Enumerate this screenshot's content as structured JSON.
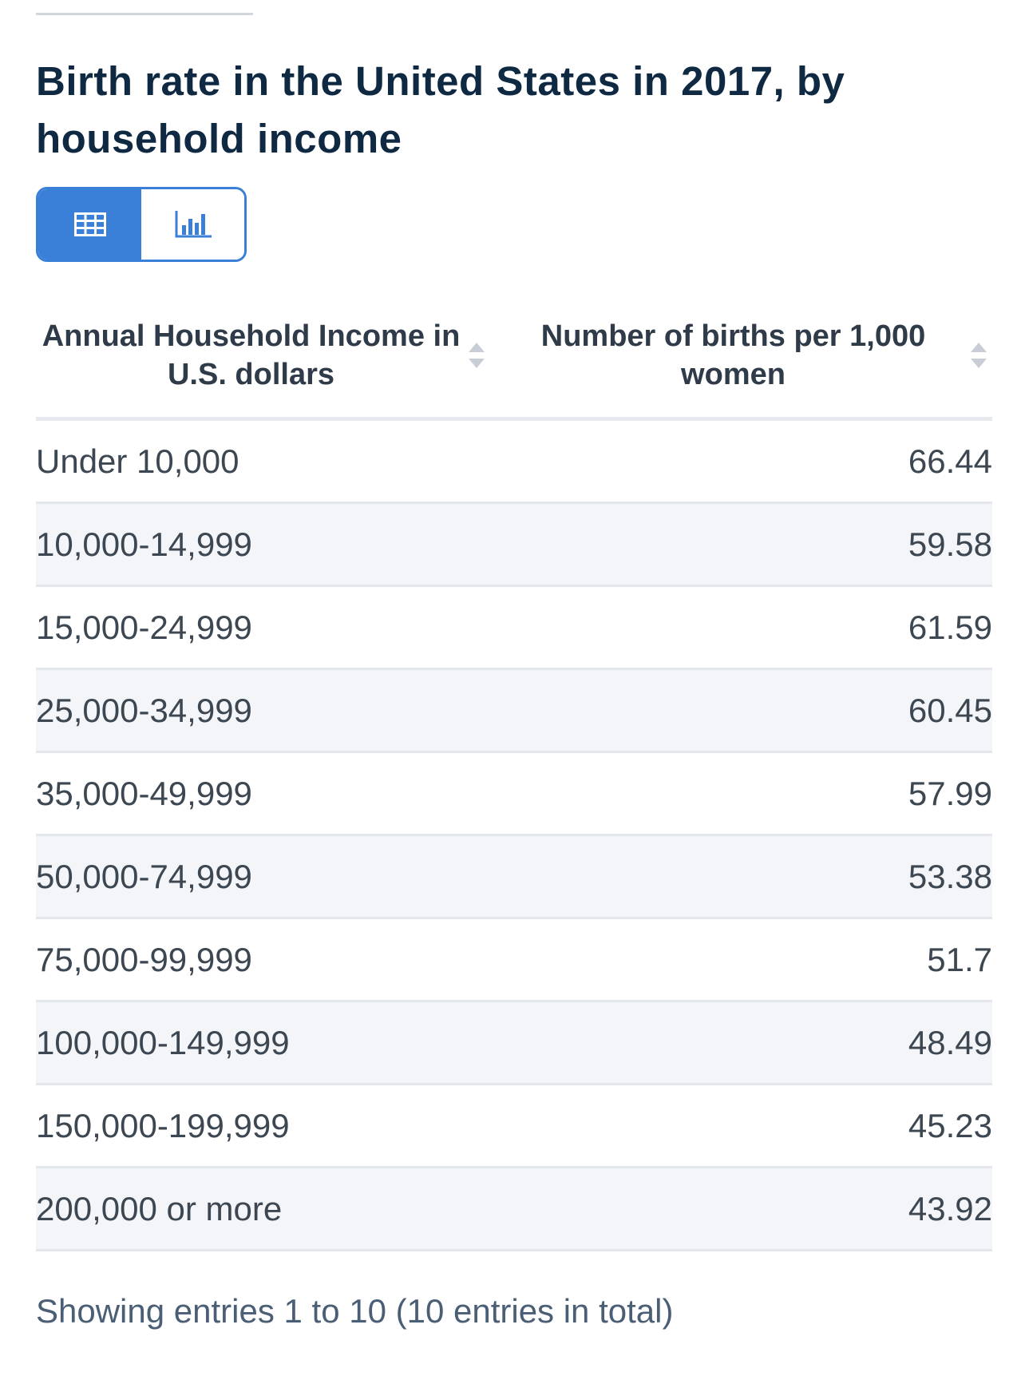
{
  "title": "Birth rate in the United States in 2017, by household income",
  "view_toggle": {
    "options": [
      {
        "icon": "table-icon",
        "active": true
      },
      {
        "icon": "bar-chart-icon",
        "active": false
      }
    ],
    "accent_color": "#3a7fd8"
  },
  "chart_data": {
    "type": "table",
    "title": "Birth rate in the United States in 2017, by household income",
    "columns": [
      "Annual Household Income in U.S. dollars",
      "Number of births per 1,000 women"
    ],
    "rows": [
      {
        "income": "Under 10,000",
        "births": "66.44"
      },
      {
        "income": "10,000-14,999",
        "births": "59.58"
      },
      {
        "income": "15,000-24,999",
        "births": "61.59"
      },
      {
        "income": "25,000-34,999",
        "births": "60.45"
      },
      {
        "income": "35,000-49,999",
        "births": "57.99"
      },
      {
        "income": "50,000-74,999",
        "births": "53.38"
      },
      {
        "income": "75,000-99,999",
        "births": "51.7"
      },
      {
        "income": "100,000-149,999",
        "births": "48.49"
      },
      {
        "income": "150,000-199,999",
        "births": "45.23"
      },
      {
        "income": "200,000 or more",
        "births": "43.92"
      }
    ]
  },
  "footer": {
    "entries_text": "Showing entries 1 to 10 (10 entries in total)"
  }
}
